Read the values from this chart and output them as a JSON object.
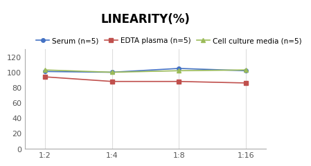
{
  "title": "LINEARITY(%)",
  "x_labels": [
    "1:2",
    "1:4",
    "1:8",
    "1:16"
  ],
  "x_positions": [
    0,
    1,
    2,
    3
  ],
  "series": [
    {
      "label": "Serum (n=5)",
      "values": [
        101,
        100,
        105,
        102
      ],
      "color": "#4472C4",
      "marker": "o",
      "markersize": 4
    },
    {
      "label": "EDTA plasma (n=5)",
      "values": [
        94,
        88,
        88,
        86
      ],
      "color": "#C0504D",
      "marker": "s",
      "markersize": 4
    },
    {
      "label": "Cell culture media (n=5)",
      "values": [
        103,
        100,
        102,
        103
      ],
      "color": "#9BBB59",
      "marker": "^",
      "markersize": 4
    }
  ],
  "ylim": [
    0,
    130
  ],
  "yticks": [
    0,
    20,
    40,
    60,
    80,
    100,
    120
  ],
  "background_color": "#ffffff",
  "title_fontsize": 12,
  "legend_fontsize": 7.5,
  "tick_fontsize": 8
}
